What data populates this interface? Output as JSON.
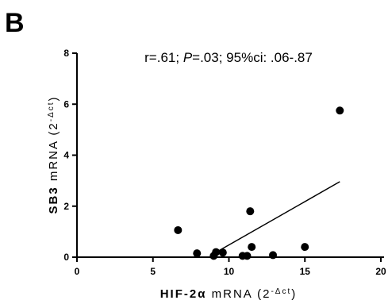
{
  "panel_label": "B",
  "chart_data": {
    "type": "scatter",
    "annotation": [
      "r=.61; ",
      "P",
      "=.03; 95%ci: .06-.87"
    ],
    "x_label": [
      "HIF-2α",
      " mRNA (2",
      "-Δct",
      ")"
    ],
    "y_label": [
      "SB3",
      " mRNA (2",
      "-Δct",
      ")"
    ],
    "x": [
      6.65,
      7.9,
      9.0,
      9.15,
      9.6,
      10.9,
      11.2,
      11.4,
      11.5,
      12.9,
      15.0,
      17.3
    ],
    "values": [
      1.06,
      0.15,
      0.05,
      0.2,
      0.18,
      0.05,
      0.05,
      1.8,
      0.4,
      0.08,
      0.4,
      5.75
    ],
    "color": "#000000",
    "fit_line": {
      "x": [
        9.15,
        17.3
      ],
      "y": [
        0.19,
        2.96
      ]
    },
    "xlim": [
      0,
      20
    ],
    "ylim": [
      0,
      8
    ],
    "xticks": [
      0,
      5,
      10,
      15,
      20
    ],
    "yticks": [
      0,
      2,
      4,
      6,
      8
    ]
  }
}
